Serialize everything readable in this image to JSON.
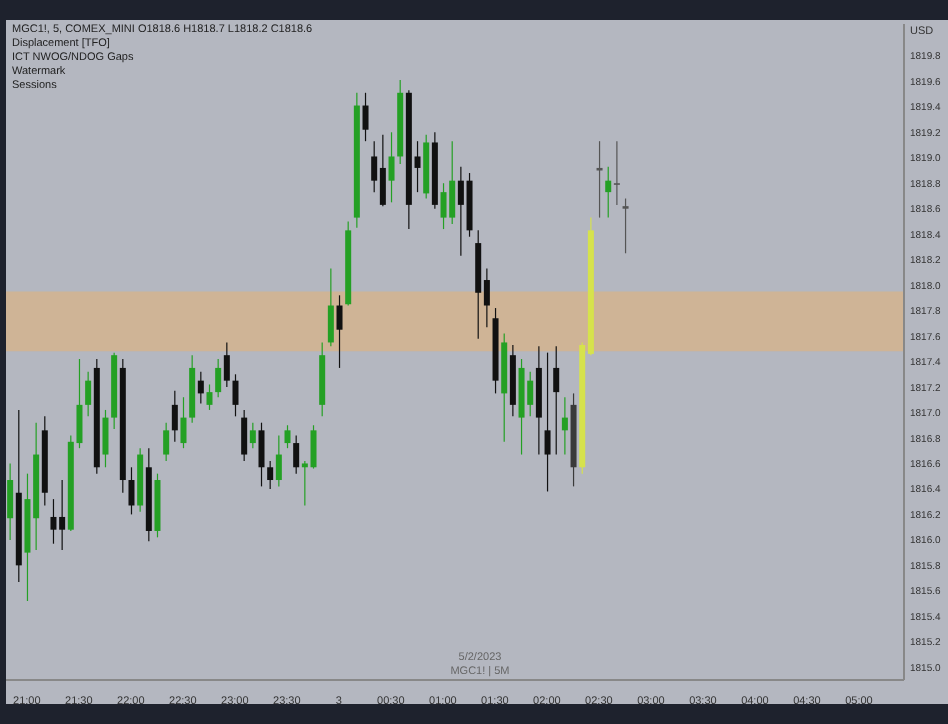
{
  "chart_data": {
    "type": "candlestick",
    "title": "MGC1!, 5, COMEX_MINI O1818.6 H1818.7 L1818.2 C1818.6",
    "ylabel": "USD",
    "annotations": [
      "Displacement [TFO]",
      "ICT NWOG/NDOG Gaps",
      "Watermark",
      "Sessions",
      "5/2/2023",
      "MGC1! | 5M"
    ],
    "x": [
      "2023-05-02T20:50",
      "2023-05-02T20:55",
      "2023-05-02T21:00",
      "2023-05-02T21:05",
      "2023-05-02T21:10",
      "2023-05-02T21:15",
      "2023-05-02T21:20",
      "2023-05-02T21:25",
      "2023-05-02T21:30",
      "2023-05-02T21:35",
      "2023-05-02T21:40",
      "2023-05-02T21:45",
      "2023-05-02T21:50",
      "2023-05-02T21:55",
      "2023-05-02T22:00",
      "2023-05-02T22:05",
      "2023-05-02T22:10",
      "2023-05-02T22:15",
      "2023-05-02T22:20",
      "2023-05-02T22:25",
      "2023-05-02T22:30",
      "2023-05-02T22:35",
      "2023-05-02T22:40",
      "2023-05-02T22:45",
      "2023-05-02T22:50",
      "2023-05-02T22:55",
      "2023-05-02T23:00",
      "2023-05-02T23:05",
      "2023-05-02T23:10",
      "2023-05-02T23:15",
      "2023-05-02T23:20",
      "2023-05-02T23:25",
      "2023-05-02T23:30",
      "2023-05-02T23:35",
      "2023-05-02T23:40",
      "2023-05-02T23:45",
      "2023-05-02T23:50",
      "2023-05-02T23:55",
      "2023-05-03T00:00",
      "2023-05-03T00:05",
      "2023-05-03T00:10",
      "2023-05-03T00:15",
      "2023-05-03T00:20",
      "2023-05-03T00:25",
      "2023-05-03T00:30",
      "2023-05-03T00:35",
      "2023-05-03T00:40",
      "2023-05-03T00:45",
      "2023-05-03T00:50",
      "2023-05-03T00:55",
      "2023-05-03T01:00",
      "2023-05-03T01:05",
      "2023-05-03T01:10",
      "2023-05-03T01:15",
      "2023-05-03T01:20",
      "2023-05-03T01:25",
      "2023-05-03T01:30",
      "2023-05-03T01:35",
      "2023-05-03T01:40",
      "2023-05-03T01:45",
      "2023-05-03T01:50",
      "2023-05-03T01:55",
      "2023-05-03T02:00",
      "2023-05-03T02:05",
      "2023-05-03T02:10",
      "2023-05-03T02:15",
      "2023-05-03T02:20",
      "2023-05-03T02:25",
      "2023-05-03T02:30",
      "2023-05-03T02:35",
      "2023-05-03T02:40",
      "2023-05-03T02:45"
    ],
    "ohlc": [
      [
        1816.17,
        1816.6,
        1816.0,
        1816.47
      ],
      [
        1816.37,
        1817.02,
        1815.67,
        1815.8
      ],
      [
        1815.9,
        1816.52,
        1815.52,
        1816.32
      ],
      [
        1816.17,
        1816.92,
        1815.92,
        1816.67
      ],
      [
        1816.86,
        1816.97,
        1816.27,
        1816.37
      ],
      [
        1816.18,
        1816.32,
        1815.97,
        1816.08
      ],
      [
        1816.18,
        1816.47,
        1815.92,
        1816.08
      ],
      [
        1816.08,
        1816.82,
        1816.07,
        1816.77
      ],
      [
        1816.76,
        1817.42,
        1816.72,
        1817.06
      ],
      [
        1817.06,
        1817.32,
        1816.97,
        1817.25
      ],
      [
        1817.35,
        1817.42,
        1816.52,
        1816.57
      ],
      [
        1816.67,
        1817.02,
        1816.57,
        1816.96
      ],
      [
        1816.96,
        1817.47,
        1816.87,
        1817.45
      ],
      [
        1817.35,
        1817.42,
        1816.37,
        1816.47
      ],
      [
        1816.47,
        1816.57,
        1816.2,
        1816.27
      ],
      [
        1816.27,
        1816.72,
        1816.22,
        1816.67
      ],
      [
        1816.57,
        1816.72,
        1815.99,
        1816.07
      ],
      [
        1816.07,
        1816.52,
        1816.02,
        1816.47
      ],
      [
        1816.67,
        1816.92,
        1816.62,
        1816.86
      ],
      [
        1817.06,
        1817.17,
        1816.77,
        1816.86
      ],
      [
        1816.76,
        1817.12,
        1816.72,
        1816.96
      ],
      [
        1816.96,
        1817.45,
        1816.92,
        1817.35
      ],
      [
        1817.25,
        1817.32,
        1817.07,
        1817.15
      ],
      [
        1817.06,
        1817.22,
        1817.02,
        1817.16
      ],
      [
        1817.16,
        1817.42,
        1817.12,
        1817.35
      ],
      [
        1817.45,
        1817.55,
        1817.2,
        1817.25
      ],
      [
        1817.25,
        1817.3,
        1816.97,
        1817.06
      ],
      [
        1816.96,
        1817.02,
        1816.62,
        1816.67
      ],
      [
        1816.76,
        1816.92,
        1816.72,
        1816.86
      ],
      [
        1816.86,
        1816.92,
        1816.42,
        1816.57
      ],
      [
        1816.57,
        1816.62,
        1816.4,
        1816.47
      ],
      [
        1816.47,
        1816.82,
        1816.42,
        1816.67
      ],
      [
        1816.76,
        1816.9,
        1816.72,
        1816.86
      ],
      [
        1816.76,
        1816.82,
        1816.52,
        1816.57
      ],
      [
        1816.57,
        1816.62,
        1816.27,
        1816.6
      ],
      [
        1816.57,
        1816.9,
        1816.56,
        1816.86
      ],
      [
        1817.06,
        1817.55,
        1816.97,
        1817.45
      ],
      [
        1817.55,
        1818.13,
        1817.52,
        1817.84
      ],
      [
        1817.84,
        1817.92,
        1817.35,
        1817.65
      ],
      [
        1817.85,
        1818.5,
        1817.84,
        1818.43
      ],
      [
        1818.53,
        1819.51,
        1818.45,
        1819.41
      ],
      [
        1819.41,
        1819.51,
        1819.13,
        1819.22
      ],
      [
        1819.01,
        1819.13,
        1818.73,
        1818.82
      ],
      [
        1818.92,
        1819.18,
        1818.62,
        1818.63
      ],
      [
        1818.82,
        1819.2,
        1818.65,
        1819.01
      ],
      [
        1819.01,
        1819.61,
        1818.95,
        1819.51
      ],
      [
        1819.51,
        1819.53,
        1818.44,
        1818.63
      ],
      [
        1819.01,
        1819.13,
        1818.73,
        1818.92
      ],
      [
        1818.72,
        1819.18,
        1818.68,
        1819.12
      ],
      [
        1819.12,
        1819.2,
        1818.6,
        1818.63
      ],
      [
        1818.53,
        1818.8,
        1818.44,
        1818.73
      ],
      [
        1818.53,
        1819.13,
        1818.48,
        1818.82
      ],
      [
        1818.82,
        1818.93,
        1818.23,
        1818.63
      ],
      [
        1818.82,
        1818.88,
        1818.38,
        1818.43
      ],
      [
        1818.33,
        1818.43,
        1817.58,
        1817.94
      ],
      [
        1818.04,
        1818.13,
        1817.67,
        1817.84
      ],
      [
        1817.74,
        1817.82,
        1817.15,
        1817.25
      ],
      [
        1817.15,
        1817.62,
        1816.77,
        1817.55
      ],
      [
        1817.45,
        1817.53,
        1816.97,
        1817.06
      ],
      [
        1816.96,
        1817.42,
        1816.67,
        1817.35
      ],
      [
        1817.06,
        1817.32,
        1816.97,
        1817.25
      ],
      [
        1817.35,
        1817.52,
        1816.67,
        1816.96
      ],
      [
        1816.86,
        1817.47,
        1816.38,
        1816.67
      ],
      [
        1817.35,
        1817.52,
        1816.67,
        1817.16
      ],
      [
        1816.86,
        1817.12,
        1816.67,
        1816.96
      ],
      [
        1817.06,
        1817.15,
        1816.42,
        1816.57
      ],
      [
        1816.57,
        1817.55,
        1816.52,
        1817.53
      ],
      [
        1817.46,
        1818.53,
        1817.45,
        1818.43
      ],
      [
        1818.9,
        1819.13,
        1818.53,
        1818.92
      ],
      [
        1818.73,
        1818.93,
        1818.53,
        1818.82
      ],
      [
        1818.8,
        1819.13,
        1818.63,
        1818.8
      ],
      [
        1818.6,
        1818.68,
        1818.25,
        1818.62
      ]
    ],
    "colors": [
      "#24a024",
      "#111111",
      "#24a024",
      "#24a024",
      "#111111",
      "#111111",
      "#111111",
      "#24a024",
      "#24a024",
      "#24a024",
      "#111111",
      "#24a024",
      "#24a024",
      "#111111",
      "#111111",
      "#24a024",
      "#111111",
      "#24a024",
      "#24a024",
      "#111111",
      "#24a024",
      "#24a024",
      "#111111",
      "#24a024",
      "#24a024",
      "#111111",
      "#111111",
      "#111111",
      "#24a024",
      "#111111",
      "#111111",
      "#24a024",
      "#24a024",
      "#111111",
      "#24a024",
      "#24a024",
      "#24a024",
      "#24a024",
      "#111111",
      "#24a024",
      "#24a024",
      "#111111",
      "#111111",
      "#111111",
      "#24a024",
      "#24a024",
      "#111111",
      "#111111",
      "#24a024",
      "#111111",
      "#24a024",
      "#24a024",
      "#111111",
      "#111111",
      "#111111",
      "#111111",
      "#111111",
      "#24a024",
      "#111111",
      "#24a024",
      "#24a024",
      "#111111",
      "#111111",
      "#111111",
      "#24a024",
      "#3a3a3a",
      "#d6e24c",
      "#d6e24c",
      "#555555",
      "#24a024",
      "#555555",
      "#555555"
    ],
    "bands": [
      {
        "axis": "y",
        "from": 1817.48,
        "to": 1817.95,
        "color": "#d3b48e"
      }
    ],
    "xlim": [
      "2023-05-02T20:48",
      "2023-05-03T05:26"
    ],
    "xticks": [
      {
        "value": "2023-05-02T21:00",
        "label": "21:00"
      },
      {
        "value": "2023-05-02T21:30",
        "label": "21:30"
      },
      {
        "value": "2023-05-02T22:00",
        "label": "22:00"
      },
      {
        "value": "2023-05-02T22:30",
        "label": "22:30"
      },
      {
        "value": "2023-05-02T23:00",
        "label": "23:00"
      },
      {
        "value": "2023-05-02T23:30",
        "label": "23:30"
      },
      {
        "value": "2023-05-03T00:00",
        "label": "3"
      },
      {
        "value": "2023-05-03T00:30",
        "label": "00:30"
      },
      {
        "value": "2023-05-03T01:00",
        "label": "01:00"
      },
      {
        "value": "2023-05-03T01:30",
        "label": "01:30"
      },
      {
        "value": "2023-05-03T02:00",
        "label": "02:00"
      },
      {
        "value": "2023-05-03T02:30",
        "label": "02:30"
      },
      {
        "value": "2023-05-03T03:00",
        "label": "03:00"
      },
      {
        "value": "2023-05-03T03:30",
        "label": "03:30"
      },
      {
        "value": "2023-05-03T04:00",
        "label": "04:00"
      },
      {
        "value": "2023-05-03T04:30",
        "label": "04:30"
      },
      {
        "value": "2023-05-03T05:00",
        "label": "05:00"
      }
    ],
    "ylim": [
      1814.9,
      1820.05
    ],
    "yticks": [
      {
        "value": 1815,
        "label": "1815.0"
      },
      1815.2,
      1815.4,
      1815.6,
      1815.8,
      {
        "value": 1816,
        "label": "1816.0"
      },
      1816.2,
      1816.4,
      1816.6,
      1816.8,
      {
        "value": 1817,
        "label": "1817.0"
      },
      1817.2,
      1817.4,
      1817.6,
      1817.8,
      {
        "value": 1818,
        "label": "1818.0"
      },
      1818.2,
      1818.4,
      1818.6,
      1818.8,
      {
        "value": 1819,
        "label": "1819.0"
      },
      1819.2,
      1819.4,
      1819.6,
      1819.8
    ]
  }
}
